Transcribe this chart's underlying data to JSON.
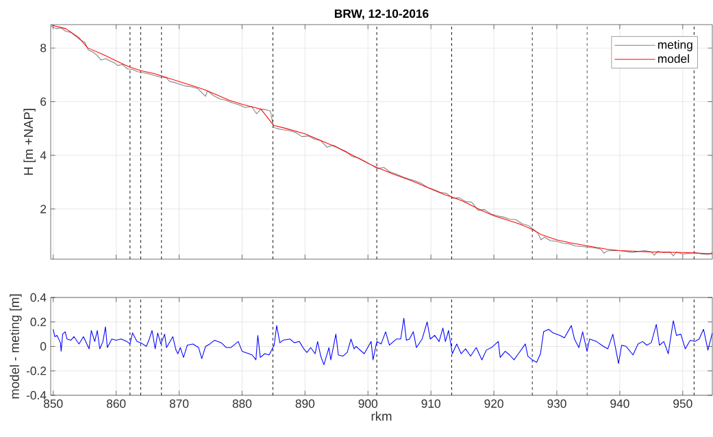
{
  "chart_data": [
    {
      "type": "line",
      "title": "BRW, 12-10-2016",
      "ylabel": "H [m +NAP]",
      "xlim": [
        849.6,
        954.7
      ],
      "ylim": [
        0.13,
        8.87
      ],
      "xticks": [
        850,
        860,
        870,
        880,
        890,
        900,
        910,
        920,
        930,
        940,
        950
      ],
      "yticks": [
        2,
        4,
        6,
        8
      ],
      "tick_labels": "y",
      "grid": true,
      "legend": "top right",
      "marker": "none",
      "ref_lines": [
        {
          "axis": "x",
          "value": 862.2,
          "color": "#000000",
          "line_style": "dashed"
        },
        {
          "axis": "x",
          "value": 863.9,
          "color": "#000000",
          "line_style": "dashed"
        },
        {
          "axis": "x",
          "value": 867.2,
          "color": "#000000",
          "line_style": "dashed"
        },
        {
          "axis": "x",
          "value": 884.9,
          "color": "#000000",
          "line_style": "dashed"
        },
        {
          "axis": "x",
          "value": 901.4,
          "color": "#000000",
          "line_style": "dashed"
        },
        {
          "axis": "x",
          "value": 913.3,
          "color": "#000000",
          "line_style": "dashed"
        },
        {
          "axis": "x",
          "value": 926.1,
          "color": "#000000",
          "line_style": "dashed"
        },
        {
          "axis": "x",
          "value": 934.8,
          "color": "#000000",
          "line_style": "dashed"
        },
        {
          "axis": "x",
          "value": 951.8,
          "color": "#000000",
          "line_style": "dashed"
        }
      ],
      "series": [
        {
          "name": "meting",
          "color": "#808080",
          "x": [
            849.7,
            850.5,
            851.2,
            852.0,
            852.8,
            853.5,
            854.3,
            855.0,
            855.6,
            856.3,
            857.0,
            857.6,
            858.3,
            859.0,
            859.7,
            860.2,
            861.0,
            861.8,
            862.6,
            863.4,
            864.2,
            865.0,
            866.0,
            867.0,
            868.0,
            868.5,
            869.2,
            870.0,
            871.0,
            872.0,
            873.0,
            874.2,
            874.5,
            875.5,
            876.5,
            877.5,
            878.5,
            879.5,
            880.5,
            881.5,
            882.3,
            883.0,
            883.8,
            884.5,
            885.0,
            885.5,
            886.5,
            887.5,
            888.5,
            889.5,
            890.5,
            891.5,
            892.5,
            893.5,
            894.5,
            895.5,
            896.5,
            897.5,
            898.5,
            899.5,
            900.5,
            901.5,
            902.5,
            903.5,
            904.5,
            905.5,
            906.5,
            907.5,
            908.5,
            909.5,
            910.5,
            911.5,
            912.5,
            913.5,
            914.5,
            915.5,
            916.5,
            917.5,
            918.5,
            919.5,
            920.5,
            921.5,
            922.5,
            923.5,
            924.5,
            925.5,
            926.5,
            927.0,
            927.5,
            928.0,
            929.0,
            930.0,
            931.0,
            932.0,
            933.0,
            934.0,
            935.0,
            936.0,
            937.0,
            937.5,
            938.0,
            939.0,
            940.0,
            941.0,
            942.0,
            943.0,
            944.0,
            945.0,
            945.5,
            946.0,
            947.0,
            948.0,
            948.5,
            949.0,
            950.0,
            951.0,
            952.0,
            953.0,
            954.0,
            954.7
          ],
          "values": [
            8.8,
            8.72,
            8.75,
            8.62,
            8.58,
            8.45,
            8.3,
            8.22,
            7.92,
            7.85,
            7.72,
            7.55,
            7.6,
            7.52,
            7.45,
            7.35,
            7.38,
            7.22,
            7.2,
            7.12,
            7.08,
            7.05,
            6.98,
            6.92,
            6.88,
            6.75,
            6.72,
            6.65,
            6.58,
            6.55,
            6.48,
            6.2,
            6.4,
            6.22,
            6.1,
            6.05,
            5.95,
            5.88,
            5.78,
            5.82,
            5.55,
            5.72,
            5.7,
            5.65,
            5.05,
            5.0,
            4.95,
            4.92,
            4.85,
            4.7,
            4.72,
            4.6,
            4.55,
            4.3,
            4.38,
            4.25,
            4.15,
            3.95,
            3.9,
            3.78,
            3.65,
            3.5,
            3.55,
            3.38,
            3.3,
            3.2,
            3.12,
            3.05,
            2.95,
            2.8,
            2.72,
            2.62,
            2.58,
            2.4,
            2.42,
            2.28,
            2.25,
            1.95,
            1.98,
            1.82,
            1.75,
            1.7,
            1.62,
            1.6,
            1.45,
            1.38,
            1.2,
            1.1,
            0.85,
            0.95,
            0.82,
            0.8,
            0.72,
            0.7,
            0.62,
            0.6,
            0.58,
            0.55,
            0.5,
            0.35,
            0.44,
            0.45,
            0.45,
            0.42,
            0.38,
            0.42,
            0.45,
            0.4,
            0.28,
            0.42,
            0.38,
            0.4,
            0.25,
            0.4,
            0.32,
            0.35,
            0.38,
            0.32,
            0.3,
            0.38
          ]
        },
        {
          "name": "model",
          "color": "#ff0000",
          "x": [
            849.7,
            852,
            854,
            855.5,
            858,
            860,
            862,
            864,
            866,
            867.3,
            870,
            872,
            874,
            876,
            878,
            880,
            882,
            883,
            885,
            887,
            890,
            892,
            895,
            898,
            900,
            901.4,
            904,
            907,
            910,
            912,
            913.3,
            915,
            918,
            920,
            922,
            924,
            926,
            927.5,
            930,
            932,
            935,
            938,
            940,
            945,
            950,
            954.7
          ],
          "values": [
            8.85,
            8.72,
            8.4,
            8.0,
            7.75,
            7.52,
            7.3,
            7.15,
            7.05,
            6.95,
            6.75,
            6.6,
            6.45,
            6.25,
            6.05,
            5.9,
            5.78,
            5.72,
            5.12,
            5.0,
            4.8,
            4.6,
            4.3,
            3.95,
            3.7,
            3.55,
            3.3,
            3.05,
            2.75,
            2.55,
            2.45,
            2.3,
            1.95,
            1.75,
            1.6,
            1.45,
            1.25,
            1.05,
            0.85,
            0.75,
            0.62,
            0.5,
            0.45,
            0.4,
            0.38,
            0.33
          ]
        }
      ]
    },
    {
      "type": "line",
      "xlabel": "rkm",
      "ylabel": "model - meting [m]",
      "xlim": [
        849.6,
        954.7
      ],
      "ylim": [
        -0.4,
        0.4
      ],
      "xticks": [
        850,
        860,
        870,
        880,
        890,
        900,
        910,
        920,
        930,
        940,
        950
      ],
      "yticks": [
        -0.4,
        -0.2,
        0,
        0.2,
        0.4
      ],
      "grid": true,
      "marker": "none",
      "ref_lines": [
        {
          "axis": "x",
          "value": 862.2,
          "color": "#000000",
          "line_style": "dashed"
        },
        {
          "axis": "x",
          "value": 863.9,
          "color": "#000000",
          "line_style": "dashed"
        },
        {
          "axis": "x",
          "value": 867.2,
          "color": "#000000",
          "line_style": "dashed"
        },
        {
          "axis": "x",
          "value": 884.9,
          "color": "#000000",
          "line_style": "dashed"
        },
        {
          "axis": "x",
          "value": 901.4,
          "color": "#000000",
          "line_style": "dashed"
        },
        {
          "axis": "x",
          "value": 913.3,
          "color": "#000000",
          "line_style": "dashed"
        },
        {
          "axis": "x",
          "value": 926.1,
          "color": "#000000",
          "line_style": "dashed"
        },
        {
          "axis": "x",
          "value": 934.8,
          "color": "#000000",
          "line_style": "dashed"
        },
        {
          "axis": "x",
          "value": 951.8,
          "color": "#000000",
          "line_style": "dashed"
        }
      ],
      "series": [
        {
          "color": "#0000ff",
          "x": [
            850.0,
            850.25,
            850.6,
            851.15,
            851.26,
            851.5,
            851.9,
            852.2,
            852.8,
            853.3,
            854.1,
            854.8,
            855.7,
            856.05,
            856.6,
            857.0,
            857.4,
            857.9,
            858.3,
            858.6,
            859.3,
            860.0,
            860.8,
            861.7,
            862.2,
            862.6,
            863.3,
            863.9,
            864.8,
            865.2,
            865.7,
            866.2,
            866.6,
            867.1,
            867.7,
            868.0,
            869.0,
            869.5,
            869.8,
            870.2,
            870.7,
            871.3,
            872.2,
            873.1,
            873.6,
            874.2,
            874.9,
            875.6,
            876.7,
            877.5,
            878.2,
            879.4,
            880.0,
            881.1,
            881.6,
            882.2,
            882.5,
            882.9,
            883.6,
            884.3,
            885.1,
            885.5,
            886.0,
            886.5,
            887.6,
            888.3,
            889.1,
            889.8,
            890.3,
            890.9,
            891.6,
            892.0,
            892.5,
            893.0,
            893.8,
            894.1,
            894.9,
            895.3,
            896.0,
            896.7,
            897.3,
            897.8,
            898.1,
            899.4,
            900.5,
            900.8,
            901.4,
            902.1,
            902.8,
            903.4,
            904.5,
            905.2,
            905.7,
            906.1,
            906.6,
            907.2,
            907.7,
            908.6,
            909.4,
            909.9,
            910.6,
            911.3,
            911.9,
            912.3,
            912.8,
            913.4,
            914.1,
            914.8,
            915.5,
            916.3,
            917.2,
            918.1,
            918.8,
            919.6,
            920.7,
            921.0,
            921.8,
            922.5,
            923.2,
            923.9,
            925.0,
            925.4,
            926.1,
            926.8,
            927.4,
            927.9,
            928.7,
            929.4,
            930.5,
            931.2,
            932.3,
            932.8,
            933.5,
            934.1,
            934.8,
            935.2,
            936.3,
            937.4,
            938.1,
            938.9,
            939.8,
            940.3,
            941.0,
            942.1,
            942.9,
            943.6,
            944.3,
            945.0,
            945.8,
            946.3,
            947.0,
            947.7,
            948.5,
            949.0,
            949.7,
            950.4,
            951.2,
            951.9,
            952.6,
            953.3,
            954.0,
            954.7
          ],
          "values": [
            0.14,
            0.08,
            0.09,
            0.03,
            -0.04,
            0.1,
            0.12,
            0.06,
            0.05,
            0.08,
            0.02,
            0.08,
            -0.02,
            0.13,
            0.04,
            0.13,
            -0.02,
            0.04,
            0.16,
            -0.01,
            0.06,
            0.05,
            0.06,
            0.04,
            0.02,
            0.11,
            0.04,
            0.03,
            0.0,
            0.05,
            0.13,
            -0.02,
            0.11,
            0.02,
            0.1,
            -0.01,
            0.08,
            -0.03,
            -0.06,
            -0.01,
            -0.09,
            0.01,
            0.02,
            -0.01,
            -0.1,
            0.0,
            0.02,
            0.05,
            0.03,
            -0.01,
            -0.01,
            0.04,
            -0.04,
            -0.06,
            -0.07,
            -0.11,
            0.09,
            -0.09,
            -0.06,
            -0.07,
            0.01,
            0.17,
            0.03,
            0.05,
            0.06,
            0.03,
            0.04,
            -0.02,
            -0.05,
            -0.01,
            -0.06,
            0.04,
            -0.08,
            -0.15,
            -0.01,
            -0.11,
            0.1,
            -0.07,
            -0.08,
            -0.05,
            0.06,
            -0.02,
            0.0,
            -0.06,
            0.04,
            -0.11,
            0.04,
            0.02,
            0.12,
            0.01,
            0.06,
            0.06,
            0.23,
            0.05,
            0.06,
            0.12,
            -0.01,
            0.06,
            0.2,
            0.06,
            0.09,
            0.04,
            0.15,
            0.04,
            0.13,
            -0.06,
            0.02,
            -0.06,
            -0.02,
            -0.08,
            -0.01,
            -0.11,
            -0.03,
            -0.01,
            0.04,
            -0.09,
            -0.04,
            -0.07,
            -0.11,
            -0.06,
            0.02,
            -0.08,
            -0.11,
            -0.13,
            -0.06,
            0.12,
            0.14,
            0.11,
            0.09,
            0.07,
            0.17,
            0.06,
            -0.01,
            0.12,
            -0.04,
            0.06,
            0.04,
            0.0,
            -0.02,
            0.1,
            -0.14,
            0.01,
            0.0,
            -0.07,
            0.02,
            0.04,
            0.01,
            0.03,
            0.18,
            0.01,
            0.04,
            -0.06,
            0.21,
            0.09,
            0.1,
            -0.02,
            0.05,
            0.04,
            0.06,
            0.14,
            -0.03,
            0.11
          ]
        }
      ]
    }
  ]
}
